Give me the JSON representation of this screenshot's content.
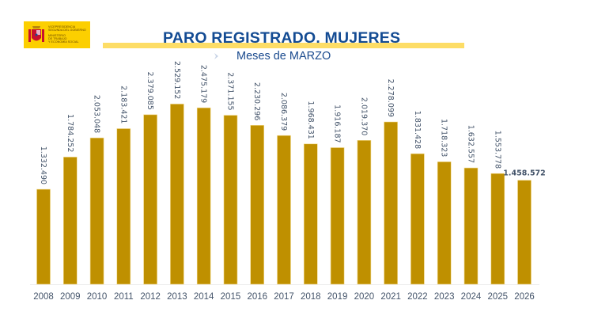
{
  "header": {
    "logo": {
      "line1": "VICEPRESIDENCIA",
      "line2": "SEGUNDA DEL GOBIERNO",
      "line3": "MINISTERIO",
      "line4": "DE TRABAJO",
      "line5": "Y ECONOMÍA SOCIAL"
    },
    "title": "PARO REGISTRADO. MUJERES",
    "subtitle": "Meses de MARZO"
  },
  "colors": {
    "bar": "#bf9000",
    "title": "#134b93",
    "accent_bar": "#fddd66",
    "logo_bg": "#fccf00",
    "label": "#44546a"
  },
  "chart_data": {
    "type": "bar",
    "title": "PARO REGISTRADO. MUJERES",
    "subtitle": "Meses de MARZO",
    "xlabel": "",
    "ylabel": "",
    "ylim": [
      0,
      2700000
    ],
    "grid": false,
    "legend": "none",
    "categories": [
      "2008",
      "2009",
      "2010",
      "2011",
      "2012",
      "2013",
      "2014",
      "2015",
      "2016",
      "2017",
      "2018",
      "2019",
      "2020",
      "2021",
      "2022",
      "2023",
      "2024",
      "2025",
      "2026"
    ],
    "values": [
      1332490,
      1784252,
      2053048,
      2183421,
      2379085,
      2529152,
      2475179,
      2371155,
      2230296,
      2086379,
      1968431,
      1916187,
      2019370,
      2278099,
      1831428,
      1718323,
      1632557,
      1553778,
      1458572
    ],
    "labels": [
      "1.332.490",
      "1.784.252",
      "2.053.048",
      "2.183.421",
      "2.379.085",
      "2.529.152",
      "2.475.179",
      "2.371.155",
      "2.230.296",
      "2.086.379",
      "1.968.431",
      "1.916.187",
      "2.019.370",
      "2.278.099",
      "1.831.428",
      "1.718.323",
      "1.632.557",
      "1.553.778",
      "1.458.572"
    ],
    "highlighted_index": 18
  }
}
